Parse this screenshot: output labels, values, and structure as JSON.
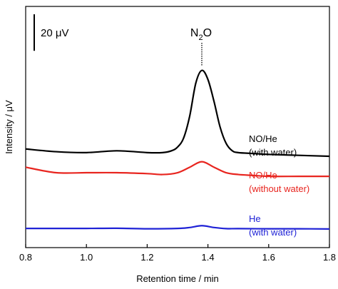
{
  "chart_data": {
    "type": "line",
    "xlabel": "Retention time / min",
    "ylabel": "Intensity / μV",
    "xlim": [
      0.8,
      1.8
    ],
    "x_ticks": [
      "0.8",
      "1.0",
      "1.2",
      "1.4",
      "1.6",
      "1.8"
    ],
    "x_tick_values": [
      0.8,
      1.0,
      1.2,
      1.4,
      1.6,
      1.8
    ],
    "y_ticks": "none",
    "ylim": [
      -10,
      122
    ],
    "grid": false,
    "scale_bar": {
      "label": "20 μV",
      "length": 20
    },
    "peak_label": {
      "base": "N",
      "subscript": "2",
      "tail": "O",
      "x": 1.38
    },
    "series": [
      {
        "label_line1": "NO/He",
        "label_line2": "(with water)",
        "color": "#000000",
        "x": [
          0.8,
          0.9,
          1.0,
          1.1,
          1.2,
          1.25,
          1.28,
          1.3,
          1.32,
          1.34,
          1.36,
          1.38,
          1.4,
          1.42,
          1.44,
          1.46,
          1.48,
          1.5,
          1.55,
          1.6,
          1.7,
          1.8
        ],
        "y": [
          44,
          42.5,
          42,
          43,
          42,
          42,
          43,
          45,
          50,
          62,
          80,
          87,
          82,
          70,
          56,
          47,
          43,
          42,
          41.5,
          41,
          40.5,
          40
        ]
      },
      {
        "label_line1": "NO/He",
        "label_line2": "(without water)",
        "color": "#e8251f",
        "x": [
          0.8,
          0.9,
          1.0,
          1.1,
          1.2,
          1.25,
          1.3,
          1.34,
          1.38,
          1.42,
          1.46,
          1.5,
          1.55,
          1.6,
          1.7,
          1.8
        ],
        "y": [
          34,
          31,
          31,
          31,
          30.5,
          30,
          31,
          34,
          37,
          34,
          31,
          30,
          29.5,
          29,
          29,
          29
        ]
      },
      {
        "label_line1": "He",
        "label_line2": "(with water)",
        "color": "#1f22d6",
        "x": [
          0.8,
          0.9,
          1.0,
          1.1,
          1.2,
          1.3,
          1.34,
          1.38,
          1.42,
          1.46,
          1.5,
          1.6,
          1.7,
          1.8
        ],
        "y": [
          0.5,
          0.5,
          0.5,
          0.6,
          0.3,
          0.5,
          1,
          2,
          1,
          0.4,
          0.4,
          0.3,
          0.3,
          0.2
        ]
      }
    ]
  }
}
